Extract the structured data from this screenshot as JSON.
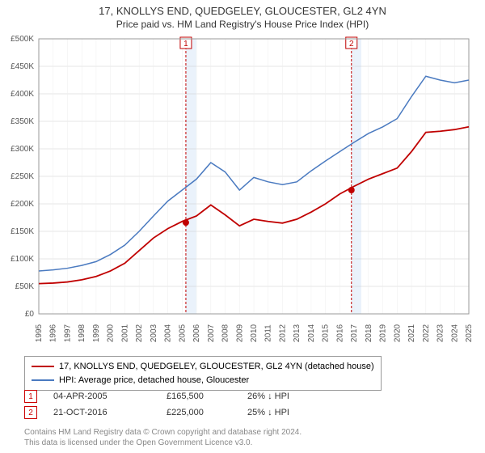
{
  "chart": {
    "type": "line",
    "title": "17, KNOLLYS END, QUEDGELEY, GLOUCESTER, GL2 4YN",
    "subtitle": "Price paid vs. HM Land Registry's House Price Index (HPI)",
    "title_fontsize": 13,
    "subtitle_fontsize": 12,
    "background_color": "#ffffff",
    "plot_border_color": "#999999",
    "grid_color_x": "#eeeeee",
    "grid_color_y": "#cccccc",
    "marker_band_color": "#eaf2fb",
    "marker_band_edge": "#c00000",
    "ylim": [
      0,
      500000
    ],
    "ytick_step": 50000,
    "ytick_labels": [
      "£0",
      "£50K",
      "£100K",
      "£150K",
      "£200K",
      "£250K",
      "£300K",
      "£350K",
      "£400K",
      "£450K",
      "£500K"
    ],
    "x_years": [
      1995,
      1996,
      1997,
      1998,
      1999,
      2000,
      2001,
      2002,
      2003,
      2004,
      2005,
      2006,
      2007,
      2008,
      2009,
      2010,
      2011,
      2012,
      2013,
      2014,
      2015,
      2016,
      2017,
      2018,
      2019,
      2020,
      2021,
      2022,
      2023,
      2024,
      2025
    ],
    "series": [
      {
        "id": "price_paid",
        "label": "17, KNOLLYS END, QUEDGELEY, GLOUCESTER, GL2 4YN (detached house)",
        "color": "#c00000",
        "line_width": 1.8,
        "y_values": [
          55000,
          56000,
          58000,
          62000,
          68000,
          78000,
          92000,
          115000,
          138000,
          155000,
          168000,
          178000,
          198000,
          180000,
          160000,
          172000,
          168000,
          165000,
          172000,
          185000,
          200000,
          218000,
          232000,
          245000,
          255000,
          265000,
          295000,
          330000,
          332000,
          335000,
          340000
        ]
      },
      {
        "id": "hpi",
        "label": "HPI: Average price, detached house, Gloucester",
        "color": "#4a7ac0",
        "line_width": 1.5,
        "y_values": [
          78000,
          80000,
          83000,
          88000,
          95000,
          108000,
          125000,
          150000,
          178000,
          205000,
          225000,
          245000,
          275000,
          258000,
          225000,
          248000,
          240000,
          235000,
          240000,
          260000,
          278000,
          295000,
          312000,
          328000,
          340000,
          355000,
          395000,
          432000,
          425000,
          420000,
          425000
        ]
      }
    ],
    "marker_events": [
      {
        "n": "1",
        "year": 2005.26,
        "band_end": 2006.0,
        "date": "04-APR-2005",
        "price": "£165,500",
        "delta": "26% ↓ HPI",
        "dot_y": 166000,
        "dot_color": "#c00000"
      },
      {
        "n": "2",
        "year": 2016.81,
        "band_end": 2017.5,
        "date": "21-OCT-2016",
        "price": "£225,000",
        "delta": "25% ↓ HPI",
        "dot_y": 225000,
        "dot_color": "#c00000"
      }
    ]
  },
  "footer": {
    "line1": "Contains HM Land Registry data © Crown copyright and database right 2024.",
    "line2": "This data is licensed under the Open Government Licence v3.0."
  }
}
